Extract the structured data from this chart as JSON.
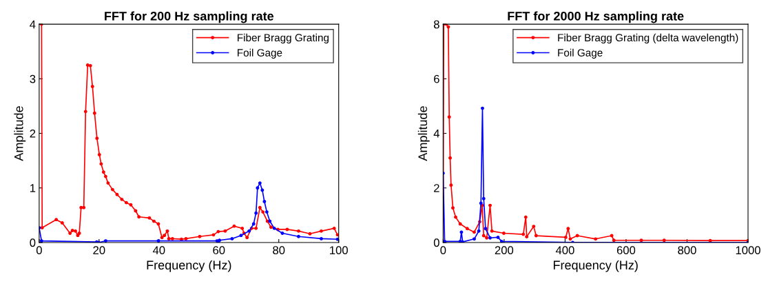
{
  "chart_data": [
    {
      "type": "line",
      "title": "FFT for 200 Hz sampling rate",
      "xlabel": "Frequency (Hz)",
      "ylabel": "Amplitude",
      "xlim": [
        0,
        100
      ],
      "xticks": [
        0,
        20,
        40,
        60,
        80,
        100
      ],
      "ylim": [
        0,
        4
      ],
      "yticks": [
        0,
        1,
        2,
        3,
        4
      ],
      "grid": false,
      "legend": "top right",
      "marker": "circle",
      "line_style": "solid",
      "series": [
        {
          "name": "Fiber Bragg Grating",
          "color": "#ff0000",
          "x": [
            0.8,
            1.0,
            5.7,
            7.7,
            10.3,
            11.1,
            12.1,
            12.9,
            13.4,
            14.0,
            14.9,
            15.5,
            16.2,
            17.1,
            17.8,
            18.5,
            19.3,
            20.1,
            20.7,
            21.5,
            22.2,
            23.0,
            24.5,
            26.0,
            27.6,
            29.1,
            30.6,
            32.2,
            33.3,
            36.8,
            38.3,
            39.8,
            41.0,
            41.8,
            42.8,
            43.3,
            44.5,
            47.5,
            49.0,
            53.6,
            58.2,
            59.8,
            62.1,
            65.1,
            67.8,
            68.4,
            69.4,
            70.9,
            72.4,
            73.7,
            74.7,
            76.2,
            77.4,
            79.7,
            82.8,
            86.6,
            90.4,
            94.2,
            98.5,
            99.6
          ],
          "values": [
            4.0,
            0.27,
            0.42,
            0.36,
            0.17,
            0.22,
            0.21,
            0.13,
            0.17,
            0.64,
            0.64,
            2.4,
            3.25,
            3.24,
            2.86,
            2.37,
            1.91,
            1.61,
            1.44,
            1.29,
            1.21,
            1.09,
            0.97,
            0.88,
            0.79,
            0.73,
            0.69,
            0.58,
            0.47,
            0.45,
            0.39,
            0.34,
            0.09,
            0.13,
            0.21,
            0.07,
            0.07,
            0.06,
            0.07,
            0.11,
            0.14,
            0.2,
            0.21,
            0.3,
            0.26,
            0.17,
            0.09,
            0.26,
            0.26,
            0.64,
            0.56,
            0.39,
            0.28,
            0.24,
            0.24,
            0.21,
            0.16,
            0.21,
            0.26,
            0.14
          ]
        },
        {
          "name": "Foil Gage",
          "color": "#0000ff",
          "x": [
            0,
            0.8,
            19.2,
            19.9,
            22.2,
            39.8,
            59.4,
            59.8,
            60.2,
            64.4,
            67.4,
            70.1,
            71.6,
            72.4,
            72.9,
            73.7,
            74.5,
            75.2,
            76.0,
            77.0,
            78.5,
            81.2,
            86.6,
            94.2,
            99.6
          ],
          "values": [
            0.27,
            0.03,
            0.01,
            0.0,
            0.03,
            0.03,
            0.03,
            0.0,
            0.04,
            0.07,
            0.13,
            0.21,
            0.34,
            0.54,
            1.0,
            1.09,
            0.96,
            0.75,
            0.56,
            0.39,
            0.26,
            0.17,
            0.11,
            0.07,
            0.06
          ]
        }
      ]
    },
    {
      "type": "line",
      "title": "FFT for 2000 Hz sampling rate",
      "xlabel": "Frequency (Hz)",
      "ylabel": "Amplitude",
      "xlim": [
        0,
        1000
      ],
      "xticks": [
        0,
        200,
        400,
        600,
        800,
        1000
      ],
      "ylim": [
        0,
        8
      ],
      "yticks": [
        0,
        2,
        4,
        6,
        8
      ],
      "grid": false,
      "legend": "top right",
      "marker": "circle",
      "line_style": "solid",
      "series": [
        {
          "name": "Fiber Bragg Grating (delta wavelength)",
          "color": "#ff0000",
          "x": [
            0,
            2,
            5,
            11,
            17,
            20,
            23,
            26,
            32,
            41,
            56,
            79,
            102,
            120,
            128,
            133,
            143,
            154,
            160,
            199,
            263,
            271,
            274,
            297,
            305,
            402,
            410,
            417,
            440,
            500,
            553,
            560,
            650,
            725,
            876,
            1000
          ],
          "values": [
            0,
            8.0,
            null,
            8.0,
            7.9,
            4.6,
            3.1,
            2.1,
            1.27,
            0.93,
            0.68,
            0.51,
            0.38,
            0.76,
            1.36,
            0.25,
            0.17,
            1.36,
            0.42,
            0.34,
            0.3,
            0.93,
            0.21,
            0.59,
            0.25,
            0.19,
            0.51,
            0.13,
            0.25,
            0.13,
            0.25,
            0.08,
            0.08,
            0.08,
            0.07,
            0.07
          ]
        },
        {
          "name": "Foil Gage",
          "color": "#0000ff",
          "x": [
            0,
            5,
            56,
            60,
            64,
            102,
            117,
            124,
            129,
            133,
            139,
            154,
            180,
            192,
            425,
            1000
          ],
          "values": [
            2.54,
            0.04,
            0.04,
            0.38,
            0.02,
            0.13,
            0.42,
            1.44,
            4.92,
            1.61,
            0.51,
            0.17,
            0.19,
            0.04,
            0.0,
            0.0
          ]
        }
      ]
    }
  ]
}
